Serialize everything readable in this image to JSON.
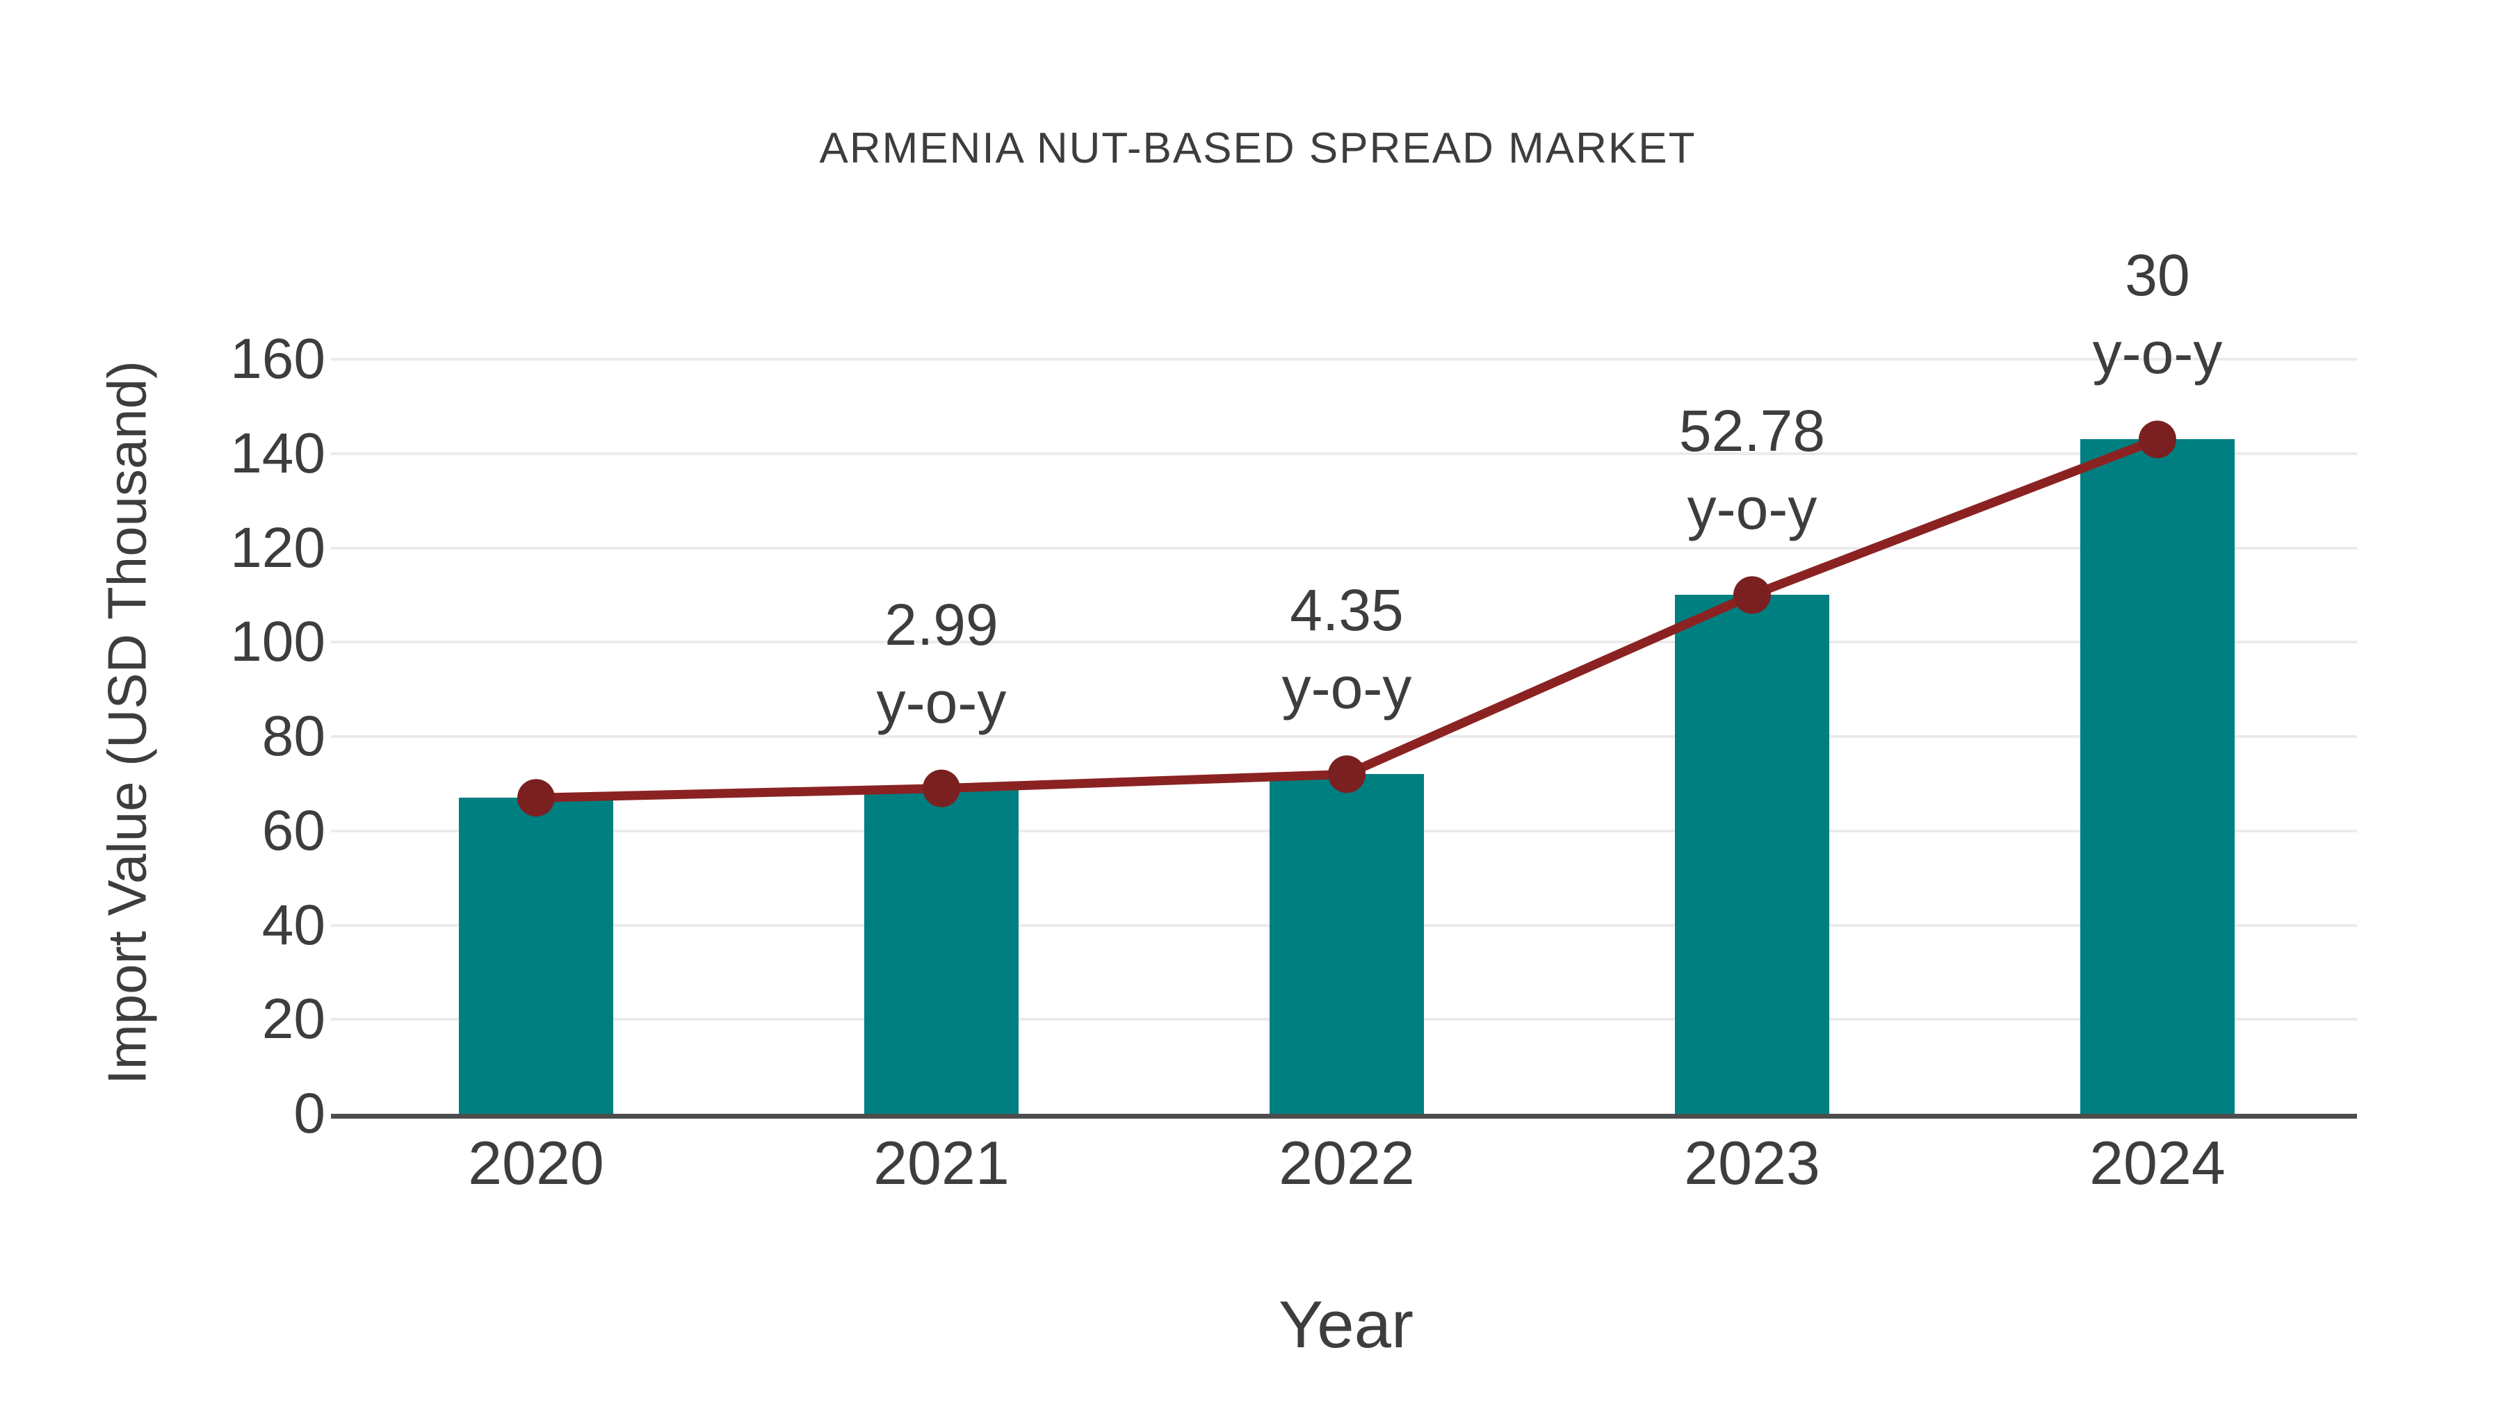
{
  "chart_data": {
    "type": "bar",
    "title": "ARMENIA NUT-BASED SPREAD MARKET",
    "xlabel": "Year",
    "ylabel": "Import Value (USD Thousand)",
    "categories": [
      "2020",
      "2021",
      "2022",
      "2023",
      "2024"
    ],
    "series": [
      {
        "name": "import-value-bars",
        "type": "bar",
        "values": [
          67,
          69,
          72,
          110,
          143
        ]
      },
      {
        "name": "import-value-trend",
        "type": "line",
        "values": [
          67,
          69,
          72,
          110,
          143
        ]
      }
    ],
    "ylim": [
      0,
      160
    ],
    "yticks": [
      0,
      20,
      40,
      60,
      80,
      100,
      120,
      140,
      160
    ],
    "grid": true,
    "legend_position": "none",
    "annotations": [
      {
        "category": "2021",
        "lines": [
          "2.99",
          "y-o-y"
        ]
      },
      {
        "category": "2022",
        "lines": [
          "4.35",
          "y-o-y"
        ]
      },
      {
        "category": "2023",
        "lines": [
          "52.78",
          "y-o-y"
        ]
      },
      {
        "category": "2024",
        "lines": [
          "30",
          "y-o-y"
        ]
      }
    ]
  },
  "colors": {
    "bar": "#007F80",
    "line": "#8B2222",
    "marker": "#7B2020",
    "grid": "#EBEBEB",
    "axis": "#4D4D4D",
    "text": "#3D3D3D",
    "background": "#FFFFFF"
  }
}
